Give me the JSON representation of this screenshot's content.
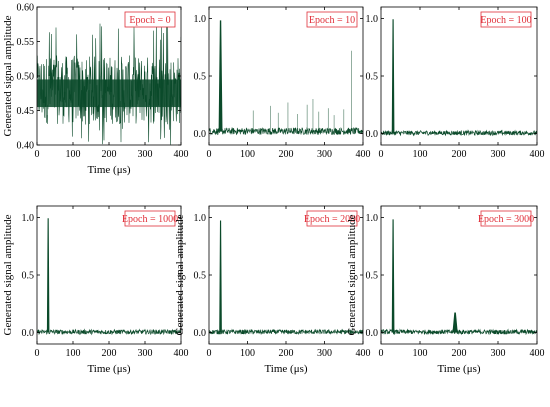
{
  "figure": {
    "trace_color": "#0b4a2a",
    "legend_color": "#e0303a",
    "panels": [
      {
        "chart_data": {
          "type": "line",
          "title": "Epoch = 0",
          "xlabel": "Time (μs)",
          "ylabel": "Generated signal amplitude",
          "xlim": [
            0,
            400
          ],
          "ylim": [
            0.4,
            0.6
          ],
          "xticks": [
            0,
            100,
            200,
            300,
            400
          ],
          "yticks": [
            0.4,
            0.45,
            0.5,
            0.55,
            0.6
          ],
          "ytick_labels": [
            "0.40",
            "0.45",
            "0.50",
            "0.55",
            "0.60"
          ],
          "baseline": 0.475,
          "noise_band": [
            0.43,
            0.53
          ],
          "noise_extremes": [
            0.4,
            0.58
          ],
          "peaks": [],
          "spikes": []
        }
      },
      {
        "chart_data": {
          "type": "line",
          "title": "Epoch = 10",
          "xlabel": "",
          "ylabel": "",
          "xlim": [
            0,
            400
          ],
          "ylim": [
            -0.1,
            1.1
          ],
          "xticks": [
            0,
            100,
            200,
            300,
            400
          ],
          "yticks": [
            0.0,
            0.5,
            1.0
          ],
          "ytick_labels": [
            "0.0",
            "0.5",
            "1.0"
          ],
          "baseline": 0.02,
          "noise_band": [
            0.0,
            0.06
          ],
          "peaks": [
            {
              "x": 30,
              "y": 0.98,
              "width": 5
            }
          ],
          "spikes": [
            {
              "x": 115,
              "y": 0.2
            },
            {
              "x": 160,
              "y": 0.24
            },
            {
              "x": 180,
              "y": 0.18
            },
            {
              "x": 205,
              "y": 0.27
            },
            {
              "x": 230,
              "y": 0.17
            },
            {
              "x": 255,
              "y": 0.25
            },
            {
              "x": 270,
              "y": 0.3
            },
            {
              "x": 285,
              "y": 0.19
            },
            {
              "x": 310,
              "y": 0.22
            },
            {
              "x": 325,
              "y": 0.16
            },
            {
              "x": 350,
              "y": 0.21
            },
            {
              "x": 370,
              "y": 0.72
            }
          ]
        }
      },
      {
        "chart_data": {
          "type": "line",
          "title": "Epoch = 100",
          "xlabel": "",
          "ylabel": "",
          "xlim": [
            0,
            400
          ],
          "ylim": [
            -0.1,
            1.1
          ],
          "xticks": [
            0,
            100,
            200,
            300,
            400
          ],
          "yticks": [
            0.0,
            0.5,
            1.0
          ],
          "ytick_labels": [
            "0.0",
            "0.5",
            "1.0"
          ],
          "baseline": 0.005,
          "noise_band": [
            -0.01,
            0.03
          ],
          "peaks": [
            {
              "x": 31,
              "y": 0.99,
              "width": 3
            }
          ],
          "spikes": []
        }
      },
      {
        "chart_data": {
          "type": "line",
          "title": "Epoch = 1000",
          "xlabel": "Time (μs)",
          "ylabel": "Generated signal amplitude",
          "xlim": [
            0,
            400
          ],
          "ylim": [
            -0.1,
            1.1
          ],
          "xticks": [
            0,
            100,
            200,
            300,
            400
          ],
          "yticks": [
            0.0,
            0.5,
            1.0
          ],
          "ytick_labels": [
            "0.0",
            "0.5",
            "1.0"
          ],
          "baseline": 0.005,
          "noise_band": [
            -0.01,
            0.03
          ],
          "peaks": [
            {
              "x": 31,
              "y": 0.99,
              "width": 3
            }
          ],
          "spikes": []
        }
      },
      {
        "chart_data": {
          "type": "line",
          "title": "Epoch = 2000",
          "xlabel": "Time (μs)",
          "ylabel": "Generated signal amplitude",
          "xlim": [
            0,
            400
          ],
          "ylim": [
            -0.1,
            1.1
          ],
          "xticks": [
            0,
            100,
            200,
            300,
            400
          ],
          "yticks": [
            0.0,
            0.5,
            1.0
          ],
          "ytick_labels": [
            "0.0",
            "0.5",
            "1.0"
          ],
          "baseline": 0.005,
          "noise_band": [
            -0.01,
            0.03
          ],
          "peaks": [
            {
              "x": 30,
              "y": 0.97,
              "width": 3
            }
          ],
          "spikes": []
        }
      },
      {
        "chart_data": {
          "type": "line",
          "title": "Epoch = 3000",
          "xlabel": "Time (μs)",
          "ylabel": "Generated signal amplitude",
          "xlim": [
            0,
            400
          ],
          "ylim": [
            -0.1,
            1.1
          ],
          "xticks": [
            0,
            100,
            200,
            300,
            400
          ],
          "yticks": [
            0.0,
            0.5,
            1.0
          ],
          "ytick_labels": [
            "0.0",
            "0.5",
            "1.0"
          ],
          "baseline": 0.005,
          "noise_band": [
            -0.01,
            0.03
          ],
          "peaks": [
            {
              "x": 31,
              "y": 0.98,
              "width": 3
            },
            {
              "x": 190,
              "y": 0.17,
              "width": 7
            }
          ],
          "spikes": []
        }
      }
    ]
  }
}
